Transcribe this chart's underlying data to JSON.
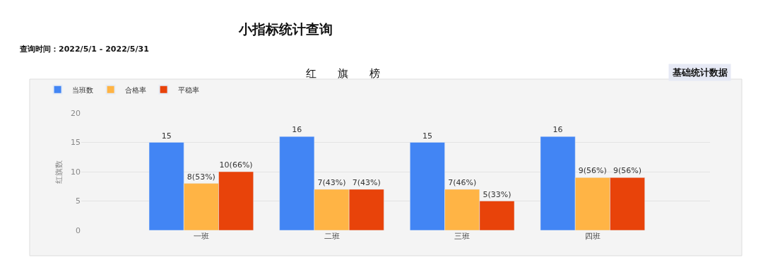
{
  "chart_data": {
    "type": "bar",
    "title": "小指标统计查询",
    "subtitle": "查询时间：2022/5/1 - 2022/5/31",
    "annotations": [
      "红　　旗　　榜",
      "基础统计数据"
    ],
    "ylabel": "红旗数",
    "categories": [
      "一班",
      "二班",
      "三班",
      "四班"
    ],
    "series": [
      {
        "name": "当班数",
        "color": "#4285f4",
        "values": [
          15,
          16,
          15,
          16
        ],
        "value_labels": [
          "15",
          "16",
          "15",
          "16"
        ]
      },
      {
        "name": "合格率",
        "color": "#ffb445",
        "values": [
          8,
          7,
          7,
          9
        ],
        "value_labels": [
          "8(53%)",
          "7(43%)",
          "7(46%)",
          "9(56%)"
        ]
      },
      {
        "name": "平稳率",
        "color": "#e8430a",
        "values": [
          10,
          7,
          5,
          9
        ],
        "value_labels": [
          "10(66%)",
          "7(43%)",
          "5(33%)",
          "9(56%)"
        ]
      }
    ],
    "ylim": [
      0,
      20
    ],
    "yticks": [
      0,
      5,
      10,
      15,
      20
    ],
    "grid": "y",
    "legend": "top left"
  }
}
